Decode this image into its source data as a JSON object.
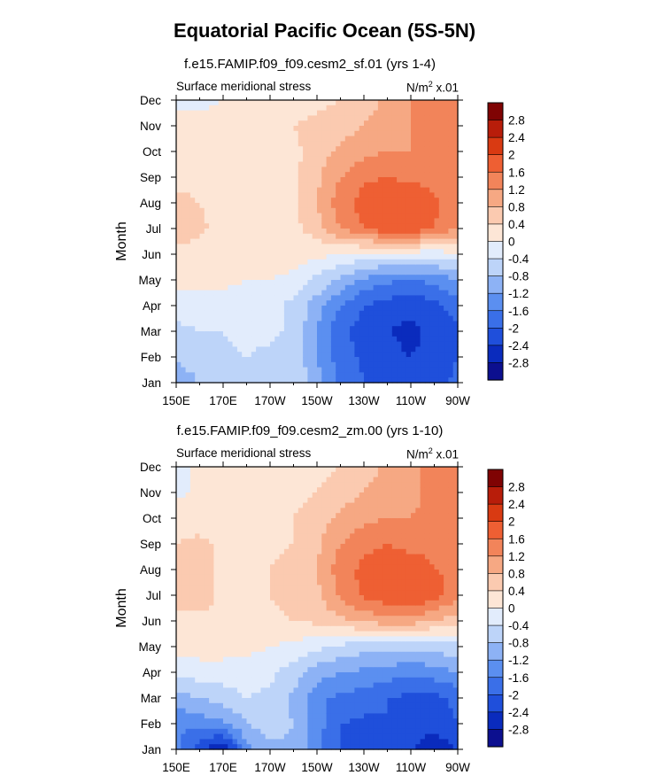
{
  "title": "Equatorial Pacific Ocean (5S-5N)",
  "chart_data": [
    {
      "type": "heatmap",
      "run_title": "f.e15.FAMIP.f09_f09.cesm2_sf.01 (yrs 1-4)",
      "variable_label": "Surface meridional stress",
      "units": {
        "base": "N/m",
        "exponent": "2",
        "scale": " x.01"
      },
      "ylabel": "Month",
      "x_labels": [
        "150E",
        "170E",
        "170W",
        "150W",
        "130W",
        "110W",
        "90W"
      ],
      "x_lon": [
        150,
        170,
        190,
        210,
        230,
        250,
        270
      ],
      "y_labels": [
        "Jan",
        "Feb",
        "Mar",
        "Apr",
        "May",
        "Jun",
        "Jul",
        "Aug",
        "Sep",
        "Oct",
        "Nov",
        "Dec"
      ],
      "xlim": [
        150,
        270
      ],
      "colorbar_levels": [
        "2.8",
        "2.4",
        "2",
        "1.6",
        "1.2",
        "0.8",
        "0.4",
        "0",
        "-0.4",
        "-0.8",
        "-1.2",
        "-1.6",
        "-2",
        "-2.4",
        "-2.8"
      ],
      "grid_lon": [
        150,
        160,
        170,
        180,
        190,
        200,
        210,
        220,
        230,
        240,
        250,
        260,
        270
      ],
      "values": [
        [
          -1.0,
          -0.8,
          -0.6,
          -0.6,
          -0.5,
          -0.5,
          -1.0,
          -1.7,
          -2.0,
          -2.2,
          -2.3,
          -2.2,
          -1.9
        ],
        [
          -0.8,
          -0.6,
          -0.5,
          -0.4,
          -0.5,
          -0.5,
          -1.2,
          -1.8,
          -2.1,
          -2.3,
          -2.4,
          -2.3,
          -2.0
        ],
        [
          -0.5,
          -0.4,
          -0.4,
          -0.3,
          -0.3,
          -0.5,
          -1.2,
          -1.9,
          -2.2,
          -2.4,
          -2.5,
          -2.3,
          -2.1
        ],
        [
          -0.2,
          -0.2,
          -0.2,
          -0.2,
          -0.3,
          -0.5,
          -1.0,
          -1.6,
          -2.0,
          -2.2,
          -2.3,
          -2.1,
          -1.8
        ],
        [
          0.1,
          0.1,
          0.1,
          0.0,
          0.0,
          -0.1,
          -0.5,
          -0.9,
          -1.3,
          -1.5,
          -1.6,
          -1.5,
          -1.2
        ],
        [
          0.3,
          0.2,
          0.2,
          0.2,
          0.2,
          0.2,
          0.1,
          0.0,
          -0.1,
          -0.2,
          -0.2,
          -0.2,
          -0.1
        ],
        [
          0.6,
          0.5,
          0.2,
          0.2,
          0.2,
          0.3,
          0.6,
          1.2,
          1.6,
          1.9,
          1.9,
          1.6,
          1.2
        ],
        [
          0.5,
          0.4,
          0.2,
          0.2,
          0.2,
          0.3,
          0.8,
          1.4,
          1.8,
          2.0,
          2.0,
          1.7,
          1.4
        ],
        [
          0.3,
          0.3,
          0.2,
          0.2,
          0.2,
          0.3,
          0.7,
          1.2,
          1.5,
          1.6,
          1.5,
          1.4,
          1.3
        ],
        [
          0.2,
          0.2,
          0.2,
          0.2,
          0.2,
          0.3,
          0.6,
          0.9,
          1.1,
          1.2,
          1.2,
          1.3,
          1.4
        ],
        [
          0.0,
          0.1,
          0.2,
          0.2,
          0.3,
          0.4,
          0.5,
          0.6,
          0.8,
          1.0,
          1.2,
          1.4,
          1.6
        ],
        [
          0.0,
          -0.1,
          0.0,
          0.1,
          0.2,
          0.2,
          0.3,
          0.4,
          0.6,
          0.9,
          1.2,
          1.5,
          1.6
        ]
      ]
    },
    {
      "type": "heatmap",
      "run_title": "f.e15.FAMIP.f09_f09.cesm2_zm.00 (yrs 1-10)",
      "variable_label": "Surface meridional stress",
      "units": {
        "base": "N/m",
        "exponent": "2",
        "scale": " x.01"
      },
      "ylabel": "Month",
      "x_labels": [
        "150E",
        "170E",
        "170W",
        "150W",
        "130W",
        "110W",
        "90W"
      ],
      "x_lon": [
        150,
        170,
        190,
        210,
        230,
        250,
        270
      ],
      "y_labels": [
        "Jan",
        "Feb",
        "Mar",
        "Apr",
        "May",
        "Jun",
        "Jul",
        "Aug",
        "Sep",
        "Oct",
        "Nov",
        "Dec"
      ],
      "xlim": [
        150,
        270
      ],
      "colorbar_levels": [
        "2.8",
        "2.4",
        "2",
        "1.6",
        "1.2",
        "0.8",
        "0.4",
        "0",
        "-0.4",
        "-0.8",
        "-1.2",
        "-1.6",
        "-2",
        "-2.4",
        "-2.8"
      ],
      "grid_lon": [
        150,
        160,
        170,
        180,
        190,
        200,
        210,
        220,
        230,
        240,
        250,
        260,
        270
      ],
      "values": [
        [
          -1.5,
          -2.2,
          -2.9,
          -1.4,
          -0.9,
          -0.9,
          -1.5,
          -2.0,
          -2.1,
          -2.2,
          -2.4,
          -2.8,
          -2.3
        ],
        [
          -1.6,
          -1.4,
          -1.3,
          -0.8,
          -0.6,
          -0.8,
          -1.4,
          -2.0,
          -2.1,
          -2.0,
          -2.0,
          -2.2,
          -2.0
        ],
        [
          -1.0,
          -0.8,
          -0.6,
          -0.4,
          -0.5,
          -0.9,
          -1.5,
          -1.7,
          -1.8,
          -2.0,
          -2.1,
          -2.1,
          -1.9
        ],
        [
          -0.3,
          -0.2,
          -0.2,
          -0.2,
          -0.3,
          -0.6,
          -1.0,
          -1.2,
          -1.3,
          -1.4,
          -1.5,
          -1.4,
          -1.2
        ],
        [
          0.2,
          0.2,
          0.2,
          0.1,
          0.0,
          -0.1,
          -0.3,
          -0.5,
          -0.6,
          -0.6,
          -0.7,
          -0.6,
          -0.5
        ],
        [
          0.3,
          0.3,
          0.3,
          0.3,
          0.3,
          0.4,
          0.5,
          0.7,
          0.9,
          1.0,
          1.0,
          0.8,
          0.5
        ],
        [
          0.5,
          0.6,
          0.3,
          0.3,
          0.4,
          0.5,
          0.7,
          1.3,
          1.7,
          1.9,
          2.0,
          1.8,
          1.4
        ],
        [
          0.5,
          0.6,
          0.3,
          0.3,
          0.4,
          0.5,
          0.8,
          1.4,
          1.7,
          1.8,
          1.8,
          1.6,
          1.5
        ],
        [
          0.4,
          0.5,
          0.3,
          0.3,
          0.3,
          0.4,
          0.7,
          1.2,
          1.5,
          1.6,
          1.5,
          1.5,
          1.5
        ],
        [
          0.2,
          0.2,
          0.2,
          0.3,
          0.3,
          0.4,
          0.6,
          0.9,
          1.1,
          1.2,
          1.2,
          1.3,
          1.4
        ],
        [
          -0.1,
          0.1,
          0.2,
          0.2,
          0.3,
          0.3,
          0.4,
          0.6,
          0.8,
          1.0,
          1.1,
          1.3,
          1.4
        ],
        [
          -0.2,
          0.1,
          0.0,
          0.1,
          0.2,
          0.2,
          0.3,
          0.4,
          0.6,
          0.9,
          1.1,
          1.3,
          1.2
        ]
      ]
    }
  ],
  "colorbar_colors": [
    "#0c0f8f",
    "#0a2bbd",
    "#1f4fdb",
    "#3a6fe8",
    "#5b8ff0",
    "#8db2f5",
    "#bdd4f9",
    "#e2ecfc",
    "#fde6d6",
    "#fbcab0",
    "#f6a883",
    "#f2845a",
    "#ee5f33",
    "#d93a12",
    "#b81d0a",
    "#7f0303"
  ]
}
